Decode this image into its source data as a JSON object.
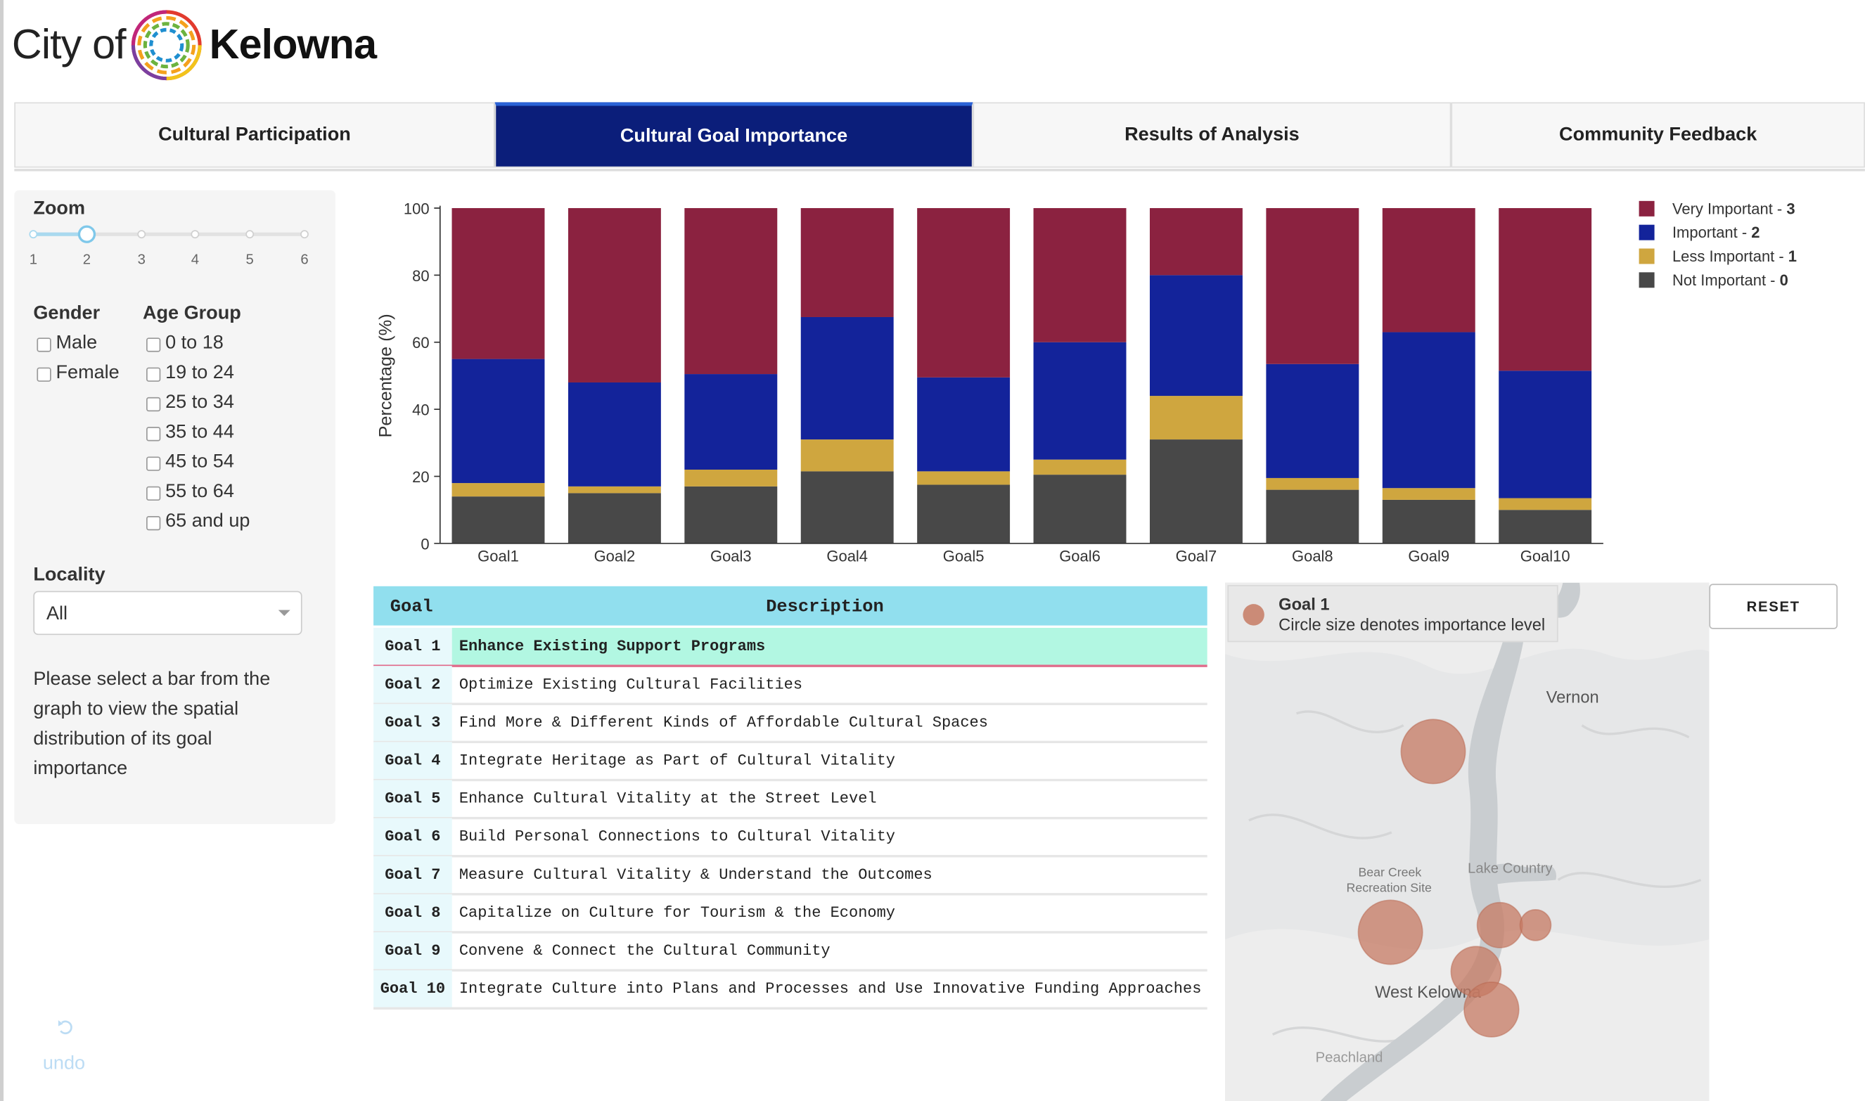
{
  "header": {
    "logo_city": "City of",
    "logo_name": "Kelowna"
  },
  "tabs": [
    {
      "label": "Cultural Participation",
      "active": false
    },
    {
      "label": "Cultural Goal Importance",
      "active": true
    },
    {
      "label": "Results of Analysis",
      "active": false
    },
    {
      "label": "Community Feedback",
      "active": false
    }
  ],
  "sidebar": {
    "zoom_label": "Zoom",
    "zoom_ticks": [
      "1",
      "2",
      "3",
      "4",
      "5",
      "6"
    ],
    "zoom_value": 2,
    "gender_label": "Gender",
    "gender_options": [
      "Male",
      "Female"
    ],
    "age_label": "Age Group",
    "age_options": [
      "0 to 18",
      "19 to 24",
      "25 to 34",
      "35 to 44",
      "45 to 54",
      "55 to 64",
      "65 and up"
    ],
    "locality_label": "Locality",
    "locality_value": "All",
    "help_text_1": "Please select a bar from the",
    "help_text_2": "graph to view the spatial",
    "help_text_3": "distribution of its goal",
    "help_text_4": "importance",
    "undo_label": "undo"
  },
  "colors": {
    "very_important": "#8b2240",
    "important": "#13239a",
    "less_important": "#cfa63f",
    "not_important": "#484848",
    "active_tab": "#0b1e7a",
    "table_header": "#91dfee",
    "selected_row": "#b2f7e2",
    "map_circle": "#c57a63"
  },
  "chart_data": {
    "type": "bar",
    "stacked": true,
    "categories": [
      "Goal1",
      "Goal2",
      "Goal3",
      "Goal4",
      "Goal5",
      "Goal6",
      "Goal7",
      "Goal8",
      "Goal9",
      "Goal10"
    ],
    "ylabel": "Percentage (%)",
    "ylim": [
      0,
      100
    ],
    "yticks": [
      "0",
      "20",
      "40",
      "60",
      "80",
      "100"
    ],
    "legend_position": "top-right",
    "series": [
      {
        "name": "Not Important",
        "level": "0",
        "color": "#484848",
        "values": [
          14,
          15,
          17,
          21.5,
          17.5,
          20.5,
          31,
          16,
          13,
          10
        ]
      },
      {
        "name": "Less Important",
        "level": "1",
        "color": "#cfa63f",
        "values": [
          4,
          2,
          5,
          9.5,
          4,
          4.5,
          13,
          3.5,
          3.5,
          3.5
        ]
      },
      {
        "name": "Important",
        "level": "2",
        "color": "#13239a",
        "values": [
          37,
          31,
          28.5,
          36.5,
          28,
          35,
          36,
          34,
          46.5,
          38
        ]
      },
      {
        "name": "Very Important",
        "level": "3",
        "color": "#8b2240",
        "values": [
          45,
          52,
          49.5,
          32.5,
          50.5,
          40,
          20,
          46.5,
          37,
          48.5
        ]
      }
    ]
  },
  "table": {
    "headers": [
      "Goal",
      "Description"
    ],
    "rows": [
      {
        "goal": "Goal 1",
        "description": "Enhance Existing Support Programs",
        "selected": true
      },
      {
        "goal": "Goal 2",
        "description": "Optimize Existing Cultural Facilities"
      },
      {
        "goal": "Goal 3",
        "description": "Find More & Different Kinds of Affordable Cultural Spaces"
      },
      {
        "goal": "Goal 4",
        "description": "Integrate Heritage as Part of Cultural Vitality"
      },
      {
        "goal": "Goal 5",
        "description": "Enhance Cultural Vitality at the Street Level"
      },
      {
        "goal": "Goal 6",
        "description": "Build Personal Connections to Cultural Vitality"
      },
      {
        "goal": "Goal 7",
        "description": "Measure Cultural Vitality & Understand the Outcomes"
      },
      {
        "goal": "Goal 8",
        "description": "Capitalize on Culture for Tourism & the Economy"
      },
      {
        "goal": "Goal 9",
        "description": "Convene & Connect the Cultural Community"
      },
      {
        "goal": "Goal 10",
        "description": "Integrate Culture into Plans and Processes and Use Innovative Funding Approaches"
      }
    ]
  },
  "map": {
    "legend_title": "Goal 1",
    "legend_note": "Circle size denotes importance level",
    "reset_label": "RESET",
    "place_labels": [
      "Vernon",
      "Lake Country",
      "Bear Creek",
      "Recreation Site",
      "West Kelowna",
      "Peachland"
    ]
  }
}
